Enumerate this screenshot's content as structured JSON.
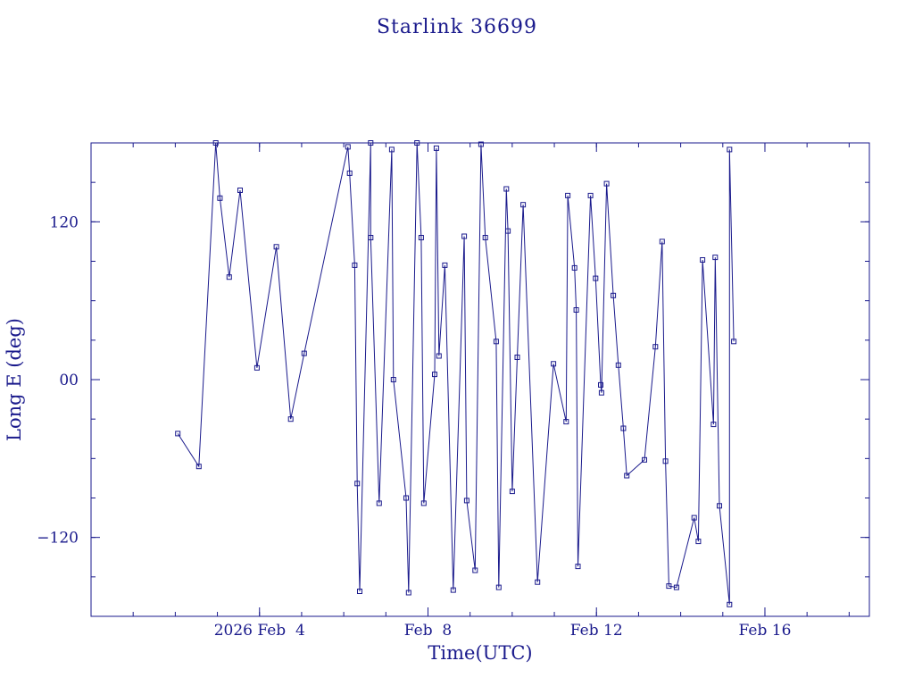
{
  "chart_data": {
    "type": "line",
    "title": "Starlink 36699",
    "xlabel": "Time(UTC)",
    "ylabel": "Long E (deg)",
    "x_unit": "days",
    "xlim": [
      0.0,
      9.24
    ],
    "ylim": [
      -180,
      180
    ],
    "x_ticks": [
      {
        "x": 2.0,
        "label": "2026 Feb  4"
      },
      {
        "x": 4.0,
        "label": "Feb  8"
      },
      {
        "x": 6.0,
        "label": "Feb 12"
      },
      {
        "x": 8.0,
        "label": "Feb 16"
      }
    ],
    "y_ticks": [
      {
        "y": -120,
        "label": "−120"
      },
      {
        "y": 0,
        "label": "00"
      },
      {
        "y": 120,
        "label": "120"
      }
    ],
    "colors": {
      "line": "#1a1a8c",
      "frame": "#1a1a8c",
      "background": "#ffffff"
    },
    "grid": false,
    "series": [
      {
        "marker": "square",
        "points": [
          [
            1.03,
            -41
          ],
          [
            1.28,
            -66
          ],
          [
            1.48,
            180
          ],
          [
            1.53,
            138
          ],
          [
            1.64,
            78
          ],
          [
            1.77,
            144
          ],
          [
            1.97,
            9
          ],
          [
            2.2,
            101
          ],
          [
            2.37,
            -30
          ],
          [
            2.53,
            20
          ],
          [
            3.05,
            177
          ],
          [
            3.07,
            157
          ],
          [
            3.13,
            87
          ],
          [
            3.16,
            -79
          ],
          [
            3.19,
            -161
          ],
          [
            3.32,
            180
          ],
          [
            3.32,
            108
          ],
          [
            3.42,
            -94
          ],
          [
            3.57,
            175
          ],
          [
            3.59,
            0
          ],
          [
            3.74,
            -90
          ],
          [
            3.77,
            -162
          ],
          [
            3.87,
            180
          ],
          [
            3.92,
            108
          ],
          [
            3.95,
            -94
          ],
          [
            4.08,
            4
          ],
          [
            4.1,
            176
          ],
          [
            4.13,
            18
          ],
          [
            4.2,
            87
          ],
          [
            4.3,
            -160
          ],
          [
            4.43,
            109
          ],
          [
            4.46,
            -92
          ],
          [
            4.56,
            -145
          ],
          [
            4.63,
            179
          ],
          [
            4.68,
            108
          ],
          [
            4.81,
            29
          ],
          [
            4.84,
            -158
          ],
          [
            4.93,
            145
          ],
          [
            4.95,
            113
          ],
          [
            5.0,
            -85
          ],
          [
            5.06,
            17
          ],
          [
            5.13,
            133
          ],
          [
            5.3,
            -154
          ],
          [
            5.49,
            12
          ],
          [
            5.64,
            -32
          ],
          [
            5.66,
            140
          ],
          [
            5.74,
            85
          ],
          [
            5.76,
            53
          ],
          [
            5.78,
            -142
          ],
          [
            5.93,
            140
          ],
          [
            5.99,
            77
          ],
          [
            6.05,
            -4
          ],
          [
            6.06,
            -10
          ],
          [
            6.12,
            149
          ],
          [
            6.2,
            64
          ],
          [
            6.26,
            11
          ],
          [
            6.32,
            -37
          ],
          [
            6.36,
            -73
          ],
          [
            6.57,
            -61
          ],
          [
            6.7,
            25
          ],
          [
            6.78,
            105
          ],
          [
            6.82,
            -62
          ],
          [
            6.86,
            -157
          ],
          [
            6.95,
            -158
          ],
          [
            7.16,
            -105
          ],
          [
            7.21,
            -123
          ],
          [
            7.26,
            91
          ],
          [
            7.39,
            -34
          ],
          [
            7.41,
            93
          ],
          [
            7.46,
            -96
          ],
          [
            7.58,
            -171
          ],
          [
            7.58,
            175
          ],
          [
            7.63,
            29
          ]
        ]
      }
    ]
  }
}
